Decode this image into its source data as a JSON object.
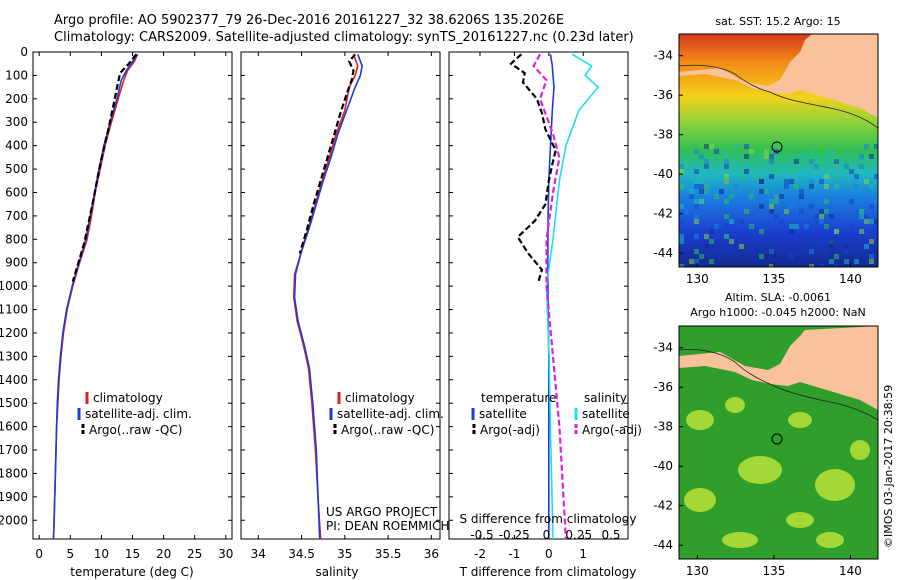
{
  "title": {
    "line1": "Argo profile: AO 5902377_79 26-Dec-2016 20161227_32 38.6206S 135.2026E",
    "line2": "Climatology: CARS2009. Satellite-adjusted climatology: synTS_20161227.nc (0.23d later)"
  },
  "colors": {
    "climatology": "#e0201b",
    "satellite_t": "#1a3cd8",
    "argo": "#000000",
    "satellite_s": "#19e3ef",
    "argo_s_adj": "#e020e0",
    "land": "#f9c29a"
  },
  "chart_data": [
    {
      "type": "line",
      "name": "temperature-profile",
      "xlabel": "temperature (deg C)",
      "ylabel": "",
      "xlim": [
        -1,
        31
      ],
      "ylim": [
        2080,
        0
      ],
      "xticks": [
        "0",
        "5",
        "10",
        "15",
        "20",
        "25",
        "30"
      ],
      "yticks": [
        "0",
        "100",
        "200",
        "300",
        "400",
        "500",
        "600",
        "700",
        "800",
        "900",
        "1000",
        "1100",
        "1200",
        "1300",
        "1400",
        "1500",
        "1600",
        "1700",
        "1800",
        "1900",
        "2000"
      ],
      "legend": {
        "position": "center",
        "entries": [
          "climatology",
          "satellite-adj. clim.",
          "Argo(..raw -QC)"
        ]
      },
      "series": [
        {
          "name": "climatology",
          "color": "#e0201b",
          "style": "solid",
          "points": [
            [
              15.8,
              10
            ],
            [
              15.3,
              40
            ],
            [
              14.2,
              80
            ],
            [
              13.6,
              120
            ],
            [
              12.7,
              200
            ],
            [
              11.6,
              300
            ],
            [
              10.6,
              400
            ],
            [
              9.8,
              500
            ],
            [
              9.0,
              600
            ],
            [
              8.4,
              700
            ],
            [
              7.7,
              800
            ],
            [
              6.5,
              900
            ],
            [
              5.4,
              1000
            ],
            [
              4.5,
              1100
            ],
            [
              3.9,
              1200
            ],
            [
              3.5,
              1300
            ],
            [
              3.2,
              1400
            ],
            [
              3.0,
              1500
            ],
            [
              2.8,
              1600
            ],
            [
              2.6,
              1800
            ],
            [
              2.4,
              2000
            ],
            [
              2.3,
              2080
            ]
          ]
        },
        {
          "name": "satellite-adj. clim.",
          "color": "#1a3cd8",
          "style": "solid",
          "points": [
            [
              15.8,
              10
            ],
            [
              15.0,
              40
            ],
            [
              14.0,
              80
            ],
            [
              13.2,
              120
            ],
            [
              12.5,
              200
            ],
            [
              11.4,
              300
            ],
            [
              10.4,
              400
            ],
            [
              9.6,
              500
            ],
            [
              8.9,
              600
            ],
            [
              8.2,
              700
            ],
            [
              7.5,
              800
            ],
            [
              6.4,
              900
            ],
            [
              5.3,
              1000
            ],
            [
              4.4,
              1100
            ],
            [
              3.8,
              1200
            ],
            [
              3.4,
              1300
            ],
            [
              3.1,
              1400
            ],
            [
              2.9,
              1500
            ],
            [
              2.8,
              1600
            ],
            [
              2.6,
              1800
            ],
            [
              2.4,
              2000
            ],
            [
              2.3,
              2080
            ]
          ]
        },
        {
          "name": "Argo(..raw -QC)",
          "color": "#000000",
          "style": "dashed",
          "points": [
            [
              15.6,
              10
            ],
            [
              14.4,
              50
            ],
            [
              13.0,
              90
            ],
            [
              12.6,
              140
            ],
            [
              12.0,
              220
            ],
            [
              11.2,
              320
            ],
            [
              10.3,
              420
            ],
            [
              9.5,
              520
            ],
            [
              8.8,
              620
            ],
            [
              8.0,
              720
            ],
            [
              7.2,
              820
            ],
            [
              6.3,
              900
            ],
            [
              5.4,
              980
            ]
          ]
        }
      ]
    },
    {
      "type": "line",
      "name": "salinity-profile",
      "xlabel": "salinity",
      "ylabel": "",
      "xlim": [
        33.8,
        36.1
      ],
      "ylim": [
        2080,
        0
      ],
      "xticks": [
        "34",
        "34.5",
        "35",
        "35.5",
        "36"
      ],
      "legend": {
        "position": "center",
        "entries": [
          "climatology",
          "satellite-adj. clim.",
          "Argo(..raw -QC)"
        ]
      },
      "annotations": [
        "US ARGO PROJECT",
        "PI: DEAN ROEMMICH"
      ],
      "series": [
        {
          "name": "climatology",
          "color": "#e0201b",
          "style": "solid",
          "points": [
            [
              35.1,
              10
            ],
            [
              35.15,
              60
            ],
            [
              35.12,
              100
            ],
            [
              35.05,
              150
            ],
            [
              35.0,
              250
            ],
            [
              34.9,
              350
            ],
            [
              34.82,
              450
            ],
            [
              34.74,
              550
            ],
            [
              34.66,
              650
            ],
            [
              34.58,
              750
            ],
            [
              34.5,
              850
            ],
            [
              34.42,
              950
            ],
            [
              34.41,
              1050
            ],
            [
              34.45,
              1150
            ],
            [
              34.52,
              1250
            ],
            [
              34.58,
              1350
            ],
            [
              34.62,
              1500
            ],
            [
              34.66,
              1700
            ],
            [
              34.69,
              1900
            ],
            [
              34.72,
              2080
            ]
          ]
        },
        {
          "name": "satellite-adj. clim.",
          "color": "#1a3cd8",
          "style": "solid",
          "points": [
            [
              35.15,
              10
            ],
            [
              35.2,
              60
            ],
            [
              35.18,
              100
            ],
            [
              35.12,
              150
            ],
            [
              35.02,
              250
            ],
            [
              34.92,
              350
            ],
            [
              34.84,
              450
            ],
            [
              34.75,
              550
            ],
            [
              34.67,
              650
            ],
            [
              34.59,
              750
            ],
            [
              34.5,
              850
            ],
            [
              34.43,
              950
            ],
            [
              34.42,
              1050
            ],
            [
              34.46,
              1150
            ],
            [
              34.53,
              1250
            ],
            [
              34.59,
              1350
            ],
            [
              34.63,
              1500
            ],
            [
              34.67,
              1700
            ],
            [
              34.69,
              1900
            ],
            [
              34.71,
              2080
            ]
          ]
        },
        {
          "name": "Argo(..raw -QC)",
          "color": "#000000",
          "style": "dashed",
          "points": [
            [
              35.12,
              10
            ],
            [
              35.05,
              40
            ],
            [
              35.1,
              80
            ],
            [
              35.08,
              120
            ],
            [
              35.02,
              180
            ],
            [
              34.95,
              260
            ],
            [
              34.88,
              350
            ],
            [
              34.8,
              450
            ],
            [
              34.72,
              550
            ],
            [
              34.64,
              650
            ],
            [
              34.56,
              760
            ],
            [
              34.48,
              860
            ]
          ]
        }
      ]
    },
    {
      "type": "line",
      "name": "difference-profile",
      "xlabel": "T difference from climatology",
      "xlabel_top": "S difference from climatology",
      "ylabel": "",
      "xlim": [
        -2.9,
        2.3
      ],
      "ylim": [
        2080,
        0
      ],
      "xticks": [
        "-2",
        "-1",
        "0",
        "1"
      ],
      "xticks_top": [
        "-0.5",
        "-0.25",
        "0",
        "0.25",
        "0.5"
      ],
      "legend": {
        "position": "center",
        "entries": [
          "temperature",
          "satellite",
          "Argo(-adj)",
          "salinity",
          "satellite",
          "Argo(-adj)"
        ]
      },
      "series": [
        {
          "name": "satellite",
          "quantity": "temperature",
          "color": "#1a3cd8",
          "style": "solid",
          "points": [
            [
              0.05,
              10
            ],
            [
              0.1,
              60
            ],
            [
              0.12,
              100
            ],
            [
              0.15,
              150
            ],
            [
              0.1,
              250
            ],
            [
              0.05,
              400
            ],
            [
              0.0,
              550
            ],
            [
              -0.02,
              700
            ],
            [
              -0.03,
              900
            ],
            [
              -0.02,
              1100
            ],
            [
              0.0,
              1300
            ],
            [
              0.0,
              1600
            ],
            [
              0.0,
              2080
            ]
          ]
        },
        {
          "name": "Argo(-adj)",
          "quantity": "temperature",
          "color": "#000000",
          "style": "dashed",
          "points": [
            [
              -0.8,
              10
            ],
            [
              -1.1,
              50
            ],
            [
              -0.7,
              90
            ],
            [
              -0.75,
              130
            ],
            [
              -0.35,
              200
            ],
            [
              -0.2,
              260
            ],
            [
              -0.1,
              330
            ],
            [
              0.2,
              420
            ],
            [
              0.1,
              480
            ],
            [
              0.0,
              550
            ],
            [
              -0.1,
              650
            ],
            [
              -0.4,
              720
            ],
            [
              -0.9,
              790
            ],
            [
              -0.6,
              860
            ],
            [
              -0.2,
              930
            ],
            [
              -0.3,
              980
            ]
          ]
        },
        {
          "name": "satellite",
          "quantity": "salinity",
          "color": "#19e3ef",
          "style": "solid",
          "points": [
            [
              0.2,
              10
            ],
            [
              0.35,
              60
            ],
            [
              0.3,
              100
            ],
            [
              0.4,
              150
            ],
            [
              0.25,
              250
            ],
            [
              0.15,
              400
            ],
            [
              0.1,
              550
            ],
            [
              0.05,
              800
            ],
            [
              0.0,
              1000
            ],
            [
              0.02,
              1300
            ],
            [
              0.03,
              1600
            ],
            [
              0.05,
              2080
            ]
          ]
        },
        {
          "name": "Argo(-adj)",
          "quantity": "salinity",
          "color": "#e020e0",
          "style": "dashed",
          "points": [
            [
              -0.05,
              10
            ],
            [
              -0.1,
              60
            ],
            [
              0.0,
              120
            ],
            [
              -0.05,
              200
            ],
            [
              0.05,
              350
            ],
            [
              0.1,
              450
            ],
            [
              0.05,
              600
            ],
            [
              0.0,
              800
            ],
            [
              0.0,
              1000
            ],
            [
              0.05,
              1300
            ],
            [
              0.1,
              1600
            ],
            [
              0.15,
              2080
            ]
          ]
        }
      ]
    },
    {
      "type": "heatmap",
      "name": "sst-map",
      "title": "sat. SST: 15.2 Argo: 15",
      "xlim": [
        128.8,
        141.8
      ],
      "ylim": [
        -44.7,
        -32.9
      ],
      "xticks": [
        "130",
        "135",
        "140"
      ],
      "yticks": [
        "-34",
        "-36",
        "-38",
        "-40",
        "-42",
        "-44"
      ],
      "marker": {
        "lon": 135.2026,
        "lat": -38.6206
      }
    },
    {
      "type": "heatmap",
      "name": "sla-map",
      "title": "Altim. SLA: -0.0061",
      "subtitle": "Argo h1000: -0.045 h2000: NaN",
      "xlim": [
        128.8,
        141.8
      ],
      "ylim": [
        -44.7,
        -32.9
      ],
      "xticks": [
        "130",
        "135",
        "140"
      ],
      "yticks": [
        "-34",
        "-36",
        "-38",
        "-40",
        "-42",
        "-44"
      ],
      "marker": {
        "lon": 135.2026,
        "lat": -38.6206
      }
    }
  ],
  "stamp": "©IMOS 03-Jan-2017 20:38:59"
}
